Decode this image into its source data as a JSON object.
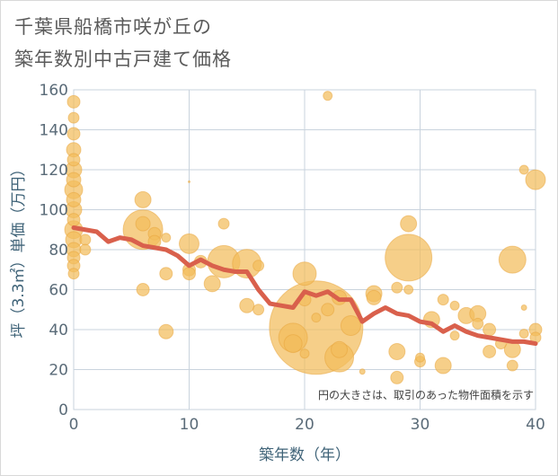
{
  "title_line1": "千葉県船橋市咲が丘の",
  "title_line2": "築年数別中古戸建て価格",
  "colors": {
    "bubble_fill": "#f3bc5c",
    "bubble_stroke": "#e8a33a",
    "line": "#d9604c",
    "grid": "#c9d3dd",
    "axis_text": "#5a6b78"
  },
  "chart_data": {
    "type": "scatter",
    "xlabel": "築年数（年）",
    "ylabel": "坪（3.3㎡）単価（万円）",
    "xlim": [
      0,
      40
    ],
    "ylim": [
      0,
      160
    ],
    "xticks": [
      0,
      10,
      20,
      30,
      40
    ],
    "yticks": [
      0,
      20,
      40,
      60,
      80,
      100,
      120,
      140,
      160
    ],
    "grid": true,
    "annotation": "円の大きさは、取引のあった物件面積を示す",
    "bubbles": [
      {
        "x": 0,
        "y": 154,
        "r": 7
      },
      {
        "x": 0,
        "y": 146,
        "r": 6
      },
      {
        "x": 0,
        "y": 138,
        "r": 7
      },
      {
        "x": 0,
        "y": 130,
        "r": 8
      },
      {
        "x": 0,
        "y": 125,
        "r": 7
      },
      {
        "x": 0,
        "y": 120,
        "r": 9
      },
      {
        "x": 0,
        "y": 115,
        "r": 8
      },
      {
        "x": 0,
        "y": 110,
        "r": 10
      },
      {
        "x": 0,
        "y": 105,
        "r": 8
      },
      {
        "x": 0,
        "y": 100,
        "r": 9
      },
      {
        "x": 0,
        "y": 95,
        "r": 7
      },
      {
        "x": 0,
        "y": 90,
        "r": 10
      },
      {
        "x": 0,
        "y": 85,
        "r": 9
      },
      {
        "x": 0,
        "y": 80,
        "r": 8
      },
      {
        "x": 0,
        "y": 76,
        "r": 7
      },
      {
        "x": 0,
        "y": 72,
        "r": 7
      },
      {
        "x": 0,
        "y": 68,
        "r": 6
      },
      {
        "x": 1,
        "y": 85,
        "r": 6
      },
      {
        "x": 1,
        "y": 80,
        "r": 6
      },
      {
        "x": 6,
        "y": 105,
        "r": 9
      },
      {
        "x": 6,
        "y": 93,
        "r": 8
      },
      {
        "x": 6,
        "y": 90,
        "r": 22
      },
      {
        "x": 7,
        "y": 88,
        "r": 7
      },
      {
        "x": 7,
        "y": 84,
        "r": 7
      },
      {
        "x": 8,
        "y": 86,
        "r": 5
      },
      {
        "x": 6,
        "y": 60,
        "r": 7
      },
      {
        "x": 8,
        "y": 68,
        "r": 7
      },
      {
        "x": 8,
        "y": 39,
        "r": 8
      },
      {
        "x": 10,
        "y": 83,
        "r": 11
      },
      {
        "x": 10,
        "y": 70,
        "r": 7
      },
      {
        "x": 10,
        "y": 68,
        "r": 7
      },
      {
        "x": 10,
        "y": 114,
        "r": 1
      },
      {
        "x": 11,
        "y": 74,
        "r": 7
      },
      {
        "x": 12,
        "y": 63,
        "r": 9
      },
      {
        "x": 13,
        "y": 93,
        "r": 6
      },
      {
        "x": 13,
        "y": 74,
        "r": 18
      },
      {
        "x": 15,
        "y": 73,
        "r": 16
      },
      {
        "x": 15,
        "y": 52,
        "r": 8
      },
      {
        "x": 16,
        "y": 72,
        "r": 6
      },
      {
        "x": 16,
        "y": 50,
        "r": 6
      },
      {
        "x": 19,
        "y": 36,
        "r": 16
      },
      {
        "x": 19,
        "y": 33,
        "r": 10
      },
      {
        "x": 20,
        "y": 68,
        "r": 13
      },
      {
        "x": 20,
        "y": 55,
        "r": 7
      },
      {
        "x": 20,
        "y": 28,
        "r": 5
      },
      {
        "x": 21,
        "y": 41,
        "r": 52
      },
      {
        "x": 21,
        "y": 46,
        "r": 5
      },
      {
        "x": 22,
        "y": 157,
        "r": 5
      },
      {
        "x": 22,
        "y": 50,
        "r": 7
      },
      {
        "x": 23,
        "y": 56,
        "r": 8
      },
      {
        "x": 23,
        "y": 30,
        "r": 9
      },
      {
        "x": 23,
        "y": 26,
        "r": 16
      },
      {
        "x": 24,
        "y": 42,
        "r": 11
      },
      {
        "x": 25,
        "y": 19,
        "r": 3
      },
      {
        "x": 26,
        "y": 58,
        "r": 9
      },
      {
        "x": 26,
        "y": 56,
        "r": 8
      },
      {
        "x": 28,
        "y": 61,
        "r": 6
      },
      {
        "x": 28,
        "y": 29,
        "r": 9
      },
      {
        "x": 28,
        "y": 16,
        "r": 7
      },
      {
        "x": 29,
        "y": 93,
        "r": 9
      },
      {
        "x": 29,
        "y": 76,
        "r": 26
      },
      {
        "x": 29,
        "y": 60,
        "r": 5
      },
      {
        "x": 30,
        "y": 26,
        "r": 5
      },
      {
        "x": 30,
        "y": 24,
        "r": 6
      },
      {
        "x": 31,
        "y": 45,
        "r": 9
      },
      {
        "x": 32,
        "y": 55,
        "r": 6
      },
      {
        "x": 32,
        "y": 22,
        "r": 9
      },
      {
        "x": 33,
        "y": 52,
        "r": 5
      },
      {
        "x": 33,
        "y": 37,
        "r": 5
      },
      {
        "x": 34,
        "y": 47,
        "r": 9
      },
      {
        "x": 35,
        "y": 48,
        "r": 9
      },
      {
        "x": 35,
        "y": 43,
        "r": 6
      },
      {
        "x": 36,
        "y": 40,
        "r": 7
      },
      {
        "x": 36,
        "y": 29,
        "r": 7
      },
      {
        "x": 37,
        "y": 33,
        "r": 6
      },
      {
        "x": 38,
        "y": 75,
        "r": 15
      },
      {
        "x": 38,
        "y": 30,
        "r": 9
      },
      {
        "x": 38,
        "y": 22,
        "r": 6
      },
      {
        "x": 39,
        "y": 120,
        "r": 5
      },
      {
        "x": 39,
        "y": 51,
        "r": 3
      },
      {
        "x": 39,
        "y": 38,
        "r": 5
      },
      {
        "x": 40,
        "y": 115,
        "r": 11
      },
      {
        "x": 40,
        "y": 40,
        "r": 7
      },
      {
        "x": 40,
        "y": 36,
        "r": 6
      }
    ],
    "series": [
      {
        "x": [
          0,
          1,
          2,
          3,
          4,
          5,
          6,
          7,
          8,
          9,
          10,
          11,
          12,
          13,
          14,
          15,
          16,
          17,
          18,
          19,
          20,
          21,
          22,
          23,
          24,
          25,
          26,
          27,
          28,
          29,
          30,
          31,
          32,
          33,
          34,
          35,
          36,
          37,
          38,
          39,
          40
        ],
        "values": [
          91,
          90,
          89,
          84,
          86,
          85,
          82,
          81,
          80,
          77,
          72,
          75,
          72,
          70,
          69,
          69,
          60,
          53,
          52,
          51,
          59,
          57,
          59,
          55,
          55,
          44,
          48,
          51,
          48,
          47,
          44,
          43,
          39,
          42,
          39,
          37,
          36,
          35,
          34,
          34,
          33
        ]
      }
    ]
  }
}
